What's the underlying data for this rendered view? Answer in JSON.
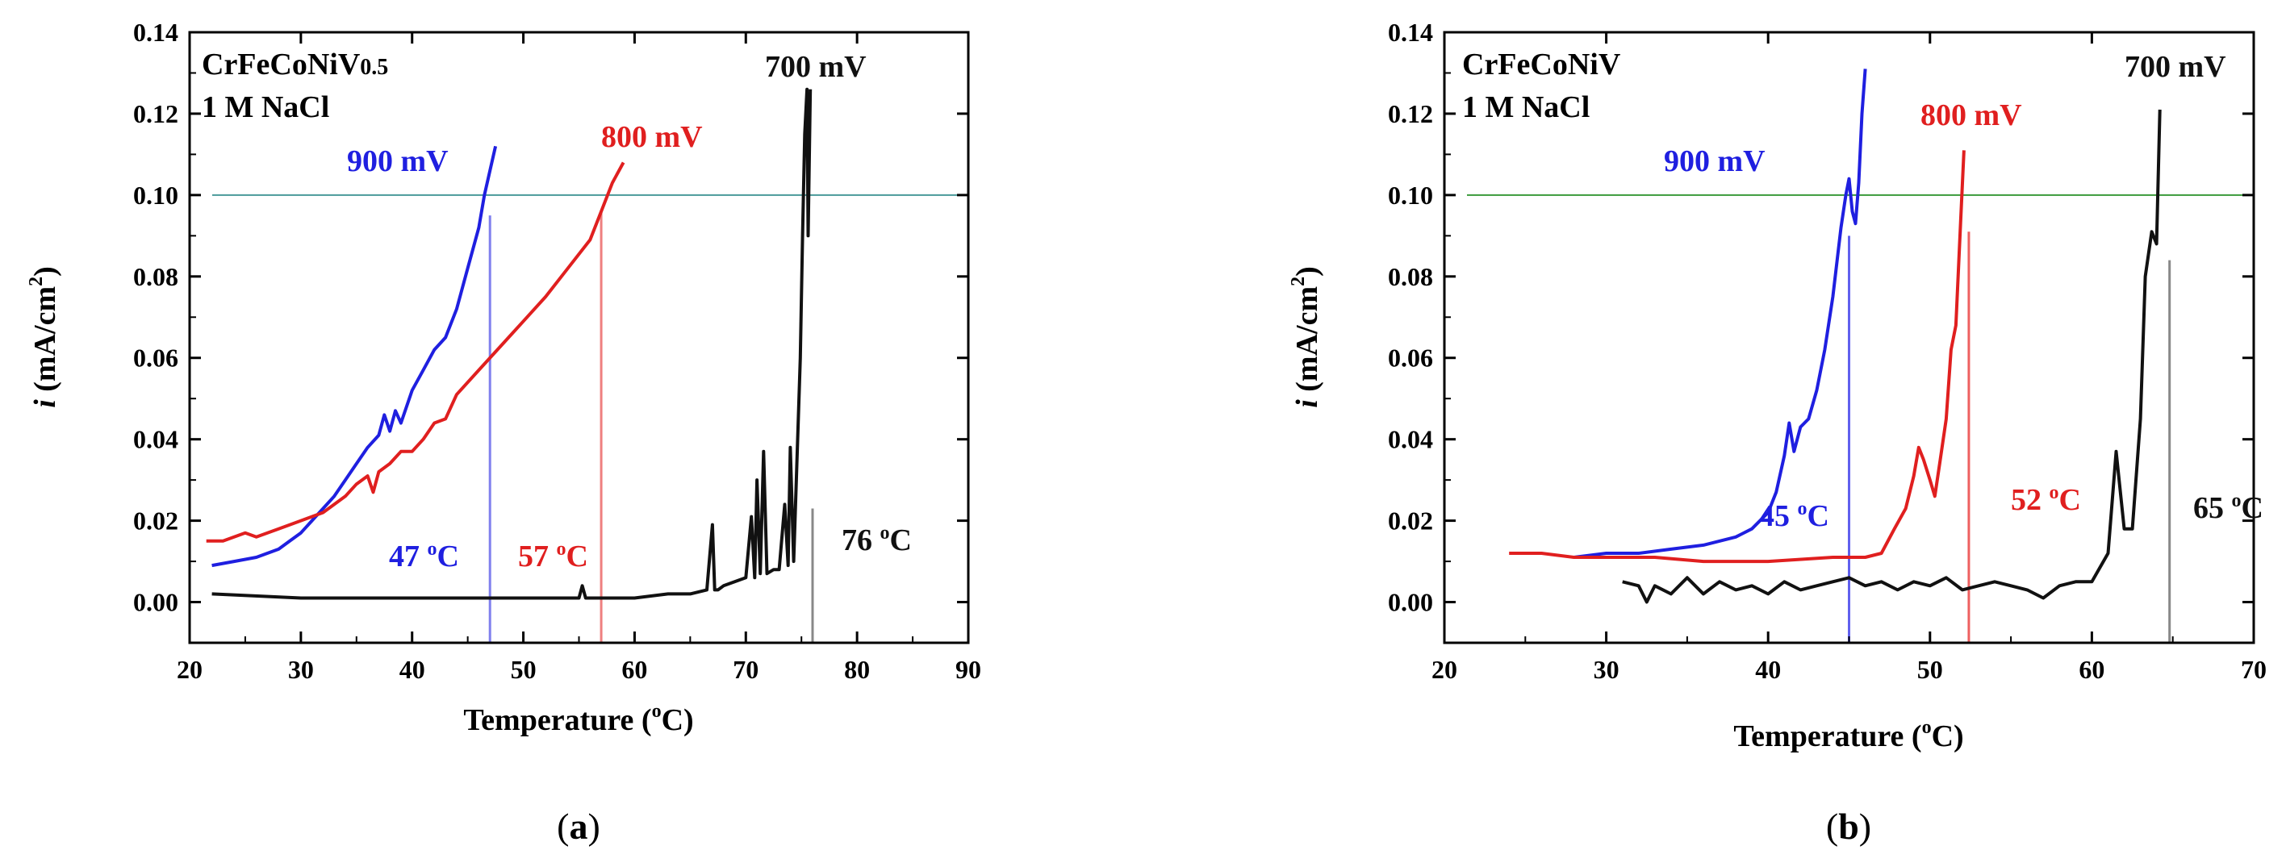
{
  "chart_data": [
    {
      "type": "line",
      "panel_label": "a",
      "xlabel": "Temperature (",
      "xlabel_unit": "C)",
      "xlabel_deg": "o",
      "ylabel_i": "i",
      "ylabel_rest": "(mA/cm",
      "ylabel_sup": "2",
      "ylabel_close": ")",
      "xlim": [
        20,
        90
      ],
      "ylim": [
        -0.01,
        0.14
      ],
      "xticks": [
        20,
        30,
        40,
        50,
        60,
        70,
        80,
        90
      ],
      "yticks": [
        "0.00",
        "0.02",
        "0.04",
        "0.06",
        "0.08",
        "0.10",
        "0.12",
        "0.14"
      ],
      "threshold": 0.1,
      "threshold_color": "#4a9a9a",
      "legend_text": {
        "alloy_main": "CrFeCoNiV",
        "alloy_sub": "0.5",
        "solution": "1 M NaCl"
      },
      "series": [
        {
          "name": "900 mV",
          "color": "#1f1fe0",
          "x": [
            22,
            24,
            26,
            28,
            29,
            30,
            31,
            32,
            33,
            34,
            35,
            36,
            37,
            37.5,
            38,
            38.5,
            39,
            40,
            41,
            42,
            43,
            44,
            45,
            46,
            46.5,
            47,
            47.5
          ],
          "y": [
            0.009,
            0.01,
            0.011,
            0.013,
            0.015,
            0.017,
            0.02,
            0.023,
            0.026,
            0.03,
            0.034,
            0.038,
            0.041,
            0.046,
            0.042,
            0.047,
            0.044,
            0.052,
            0.057,
            0.062,
            0.065,
            0.072,
            0.082,
            0.092,
            0.1,
            0.106,
            0.112
          ]
        },
        {
          "name": "800 mV",
          "color": "#e01f1f",
          "x": [
            21.5,
            23,
            25,
            26,
            28,
            30,
            32,
            34,
            35,
            36,
            36.5,
            37,
            38,
            39,
            40,
            41,
            42,
            43,
            44,
            46,
            48,
            50,
            52,
            54,
            56,
            57,
            58,
            59
          ],
          "y": [
            0.015,
            0.015,
            0.017,
            0.016,
            0.018,
            0.02,
            0.022,
            0.026,
            0.029,
            0.031,
            0.027,
            0.032,
            0.034,
            0.037,
            0.037,
            0.04,
            0.044,
            0.045,
            0.051,
            0.057,
            0.063,
            0.069,
            0.075,
            0.082,
            0.089,
            0.096,
            0.103,
            0.108
          ]
        },
        {
          "name": "700 mV",
          "color": "#111111",
          "x": [
            22,
            30,
            40,
            50,
            55,
            55.3,
            55.6,
            60,
            63,
            65,
            66.5,
            67,
            67.2,
            67.5,
            68,
            69,
            70,
            70.5,
            70.8,
            71,
            71.3,
            71.6,
            71.9,
            72.5,
            73,
            73.5,
            73.8,
            74,
            74.3,
            74.6,
            74.9,
            75.1,
            75.3,
            75.5,
            75.6,
            75.8
          ],
          "y": [
            0.002,
            0.001,
            0.001,
            0.001,
            0.001,
            0.004,
            0.001,
            0.001,
            0.002,
            0.002,
            0.003,
            0.019,
            0.003,
            0.003,
            0.004,
            0.005,
            0.006,
            0.021,
            0.006,
            0.03,
            0.007,
            0.037,
            0.007,
            0.008,
            0.008,
            0.024,
            0.009,
            0.038,
            0.01,
            0.035,
            0.06,
            0.09,
            0.115,
            0.126,
            0.09,
            0.126
          ]
        }
      ],
      "markers": [
        {
          "x": 47,
          "label_num": "47",
          "label_unit": "C",
          "label_deg": "o",
          "color": "#1f1fe0",
          "line_color": "#8080ee",
          "top": 0.095
        },
        {
          "x": 57,
          "label_num": "57",
          "label_unit": "C",
          "label_deg": "o",
          "color": "#e01f1f",
          "line_color": "#ee8080",
          "top": 0.096
        },
        {
          "x": 76,
          "label_num": "76",
          "label_unit": "C",
          "label_deg": "o",
          "color": "#111111",
          "line_color": "#888888",
          "top": 0.023
        }
      ],
      "series_labels": [
        {
          "text": "900 mV",
          "color": "#1f1fe0"
        },
        {
          "text": "800 mV",
          "color": "#e01f1f"
        },
        {
          "text": "700 mV",
          "color": "#111111"
        }
      ]
    },
    {
      "type": "line",
      "panel_label": "b",
      "xlabel": "Temperature (",
      "xlabel_unit": "C)",
      "xlabel_deg": "o",
      "ylabel_i": "i",
      "ylabel_rest": "(mA/cm",
      "ylabel_sup": "2",
      "ylabel_close": ")",
      "xlim": [
        20,
        70
      ],
      "ylim": [
        -0.01,
        0.14
      ],
      "xticks": [
        20,
        30,
        40,
        50,
        60,
        70
      ],
      "yticks": [
        "0.00",
        "0.02",
        "0.04",
        "0.06",
        "0.08",
        "0.10",
        "0.12",
        "0.14"
      ],
      "threshold": 0.1,
      "threshold_color": "#3a9a3a",
      "legend_text": {
        "alloy_main": "CrFeCoNiV",
        "alloy_sub": "",
        "solution": "1 M NaCl"
      },
      "series": [
        {
          "name": "900 mV",
          "color": "#1f1fe0",
          "x": [
            28,
            30,
            32,
            34,
            36,
            38,
            39,
            40,
            40.5,
            41,
            41.3,
            41.6,
            42,
            42.5,
            43,
            43.5,
            44,
            44.5,
            44.8,
            45,
            45.2,
            45.4,
            45.6,
            45.8,
            46
          ],
          "y": [
            0.011,
            0.012,
            0.012,
            0.013,
            0.014,
            0.016,
            0.018,
            0.022,
            0.027,
            0.036,
            0.044,
            0.037,
            0.043,
            0.045,
            0.052,
            0.062,
            0.075,
            0.092,
            0.1,
            0.104,
            0.096,
            0.093,
            0.103,
            0.12,
            0.131
          ]
        },
        {
          "name": "800 mV",
          "color": "#e01f1f",
          "x": [
            24,
            26,
            28,
            30,
            33,
            36,
            40,
            44,
            46,
            47,
            47.8,
            48.5,
            49,
            49.3,
            49.6,
            50,
            50.3,
            50.6,
            51,
            51.3,
            51.6,
            51.9,
            52.1
          ],
          "y": [
            0.012,
            0.012,
            0.011,
            0.011,
            0.011,
            0.01,
            0.01,
            0.011,
            0.011,
            0.012,
            0.018,
            0.023,
            0.031,
            0.038,
            0.035,
            0.03,
            0.026,
            0.034,
            0.045,
            0.062,
            0.068,
            0.094,
            0.111
          ]
        },
        {
          "name": "700 mV",
          "color": "#111111",
          "x": [
            31,
            32,
            32.5,
            33,
            34,
            35,
            36,
            37,
            38,
            39,
            40,
            41,
            42,
            43,
            44,
            45,
            46,
            47,
            48,
            49,
            50,
            51,
            52,
            53,
            54,
            55,
            56,
            57,
            58,
            59,
            60,
            61,
            61.5,
            62,
            62.5,
            63,
            63.3,
            63.7,
            64,
            64.2
          ],
          "y": [
            0.005,
            0.004,
            0.0,
            0.004,
            0.002,
            0.006,
            0.002,
            0.005,
            0.003,
            0.004,
            0.002,
            0.005,
            0.003,
            0.004,
            0.005,
            0.006,
            0.004,
            0.005,
            0.003,
            0.005,
            0.004,
            0.006,
            0.003,
            0.004,
            0.005,
            0.004,
            0.003,
            0.001,
            0.004,
            0.005,
            0.005,
            0.012,
            0.037,
            0.018,
            0.018,
            0.045,
            0.08,
            0.091,
            0.088,
            0.121
          ]
        }
      ],
      "markers": [
        {
          "x": 45,
          "label_num": "45",
          "label_unit": "C",
          "label_deg": "o",
          "color": "#1f1fe0",
          "line_color": "#6060ee",
          "top": 0.09
        },
        {
          "x": 52.4,
          "label_num": "52",
          "label_unit": "C",
          "label_deg": "o",
          "color": "#e01f1f",
          "line_color": "#ee6060",
          "top": 0.091
        },
        {
          "x": 64.8,
          "label_num": "65",
          "label_unit": "C",
          "label_deg": "o",
          "color": "#111111",
          "line_color": "#888888",
          "top": 0.084
        }
      ],
      "series_labels": [
        {
          "text": "900 mV",
          "color": "#1f1fe0"
        },
        {
          "text": "800 mV",
          "color": "#e01f1f"
        },
        {
          "text": "700 mV",
          "color": "#111111"
        }
      ]
    }
  ]
}
